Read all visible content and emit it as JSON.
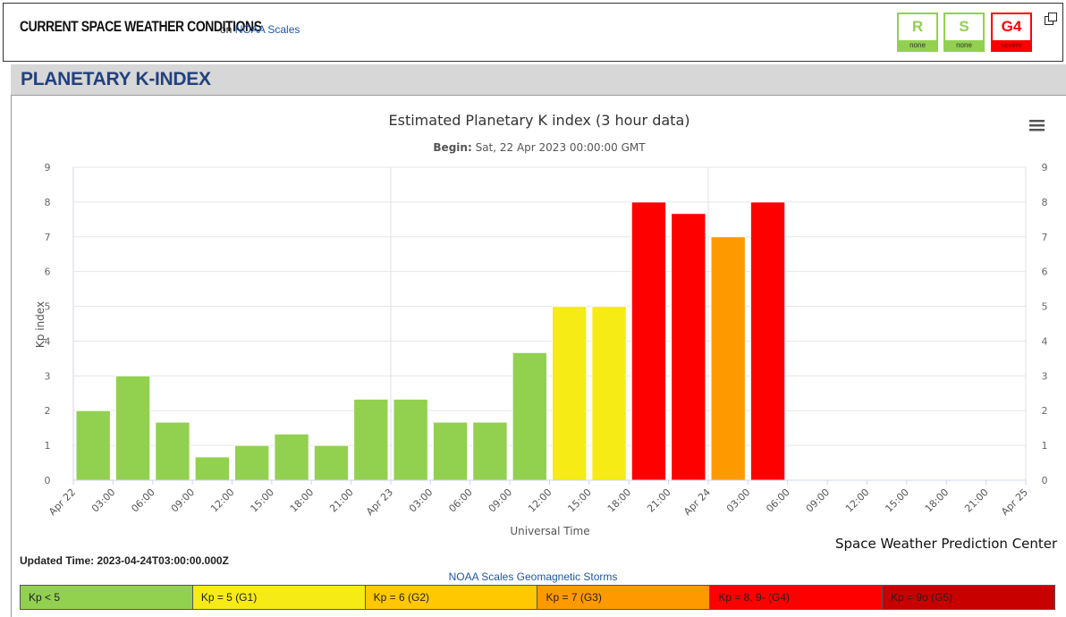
{
  "header": {
    "title": "CURRENT SPACE WEATHER CONDITIONS",
    "on_text": "on",
    "link_text": "NOAA Scales",
    "scales": [
      {
        "letter": "R",
        "level": "none",
        "color": "#92d050"
      },
      {
        "letter": "S",
        "level": "none",
        "color": "#92d050"
      },
      {
        "letter": "G4",
        "level": "severe",
        "color": "#ff0000"
      }
    ]
  },
  "section_title": "PLANETARY K-INDEX",
  "chart_data": {
    "type": "bar",
    "title": "Estimated Planetary K index (3 hour data)",
    "subtitle_label": "Begin:",
    "subtitle_value": "Sat, 22 Apr 2023 00:00:00 GMT",
    "xlabel": "Universal Time",
    "ylabel": "Kp index",
    "ylim": [
      0,
      9
    ],
    "yticks": [
      0,
      1,
      2,
      3,
      4,
      5,
      6,
      7,
      8,
      9
    ],
    "xticks": [
      "Apr 22",
      "03:00",
      "06:00",
      "09:00",
      "12:00",
      "15:00",
      "18:00",
      "21:00",
      "Apr 23",
      "03:00",
      "06:00",
      "09:00",
      "12:00",
      "15:00",
      "18:00",
      "21:00",
      "Apr 24",
      "03:00",
      "06:00",
      "09:00",
      "12:00",
      "15:00",
      "18:00",
      "21:00",
      "Apr 25"
    ],
    "categories": [
      "Apr 22 00:00",
      "Apr 22 03:00",
      "Apr 22 06:00",
      "Apr 22 09:00",
      "Apr 22 12:00",
      "Apr 22 15:00",
      "Apr 22 18:00",
      "Apr 22 21:00",
      "Apr 23 00:00",
      "Apr 23 03:00",
      "Apr 23 06:00",
      "Apr 23 09:00",
      "Apr 23 12:00",
      "Apr 23 15:00",
      "Apr 23 18:00",
      "Apr 23 21:00",
      "Apr 24 00:00",
      "Apr 24 03:00"
    ],
    "values": [
      2.0,
      3.0,
      1.67,
      0.67,
      1.0,
      1.33,
      1.0,
      2.33,
      2.33,
      1.67,
      1.67,
      3.67,
      5.0,
      5.0,
      8.0,
      7.67,
      7.0,
      8.0
    ],
    "bar_colors": [
      "#92d050",
      "#92d050",
      "#92d050",
      "#92d050",
      "#92d050",
      "#92d050",
      "#92d050",
      "#92d050",
      "#92d050",
      "#92d050",
      "#92d050",
      "#92d050",
      "#f6eb14",
      "#f6eb14",
      "#ff0000",
      "#ff0000",
      "#ff9900",
      "#ff0000"
    ],
    "grid": true,
    "credit": "Space Weather Prediction Center"
  },
  "updated_time": "Updated Time: 2023-04-24T03:00:00.000Z",
  "legend": {
    "title": "NOAA Scales Geomagnetic Storms",
    "items": [
      {
        "label": "Kp < 5",
        "color": "#92d050"
      },
      {
        "label": "Kp = 5 (G1)",
        "color": "#f6eb14"
      },
      {
        "label": "Kp = 6 (G2)",
        "color": "#ffc800"
      },
      {
        "label": "Kp = 7 (G3)",
        "color": "#ff9900"
      },
      {
        "label": "Kp = 8, 9- (G4)",
        "color": "#ff0000"
      },
      {
        "label": "Kp = 9o (G5)",
        "color": "#c80000"
      }
    ]
  }
}
